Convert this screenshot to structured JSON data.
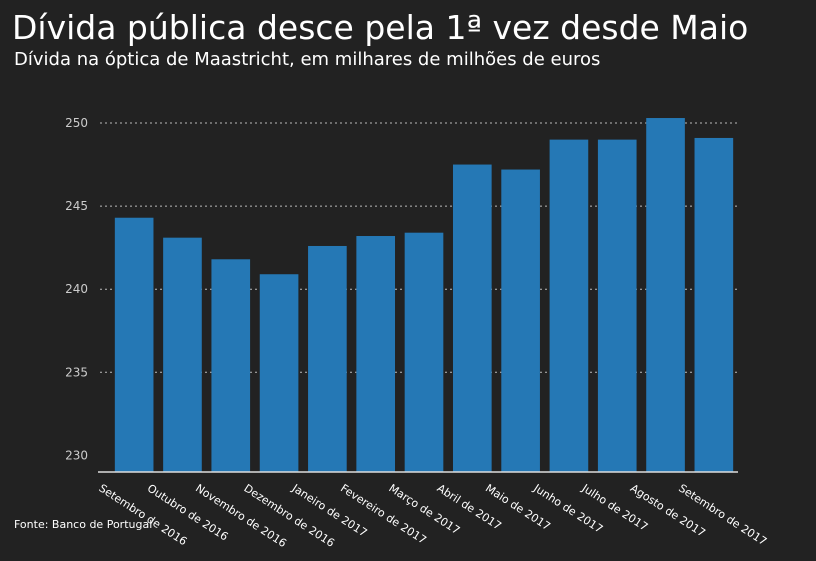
{
  "title": "Dívida pública desce pela 1ª vez desde Maio",
  "subtitle": "Dívida na óptica de Maastricht, em milhares de milhões de euros",
  "source": "Fonte: Banco de Portugal",
  "colors": {
    "background": "#222222",
    "bar": "#2578b5",
    "text": "#ffffff",
    "tick_text": "#cccccc",
    "grid": "#bbbbbb"
  },
  "chart_data": {
    "type": "bar",
    "categories": [
      "Setembro de 2016",
      "Outubro de 2016",
      "Novembro de 2016",
      "Dezembro de 2016",
      "Janeiro de 2017",
      "Fevereiro de 2017",
      "Março de 2017",
      "Abril de 2017",
      "Maio de 2017",
      "Junho de 2017",
      "Julho de 2017",
      "Agosto de 2017",
      "Setembro de 2017"
    ],
    "values": [
      244.3,
      243.1,
      241.8,
      240.9,
      242.6,
      243.2,
      243.4,
      247.5,
      247.2,
      249.0,
      249.0,
      250.3,
      249.1
    ],
    "yticks": [
      230,
      235,
      240,
      245,
      250
    ],
    "ylim": [
      229,
      251.5
    ],
    "grid": true,
    "xlabel": "",
    "ylabel": ""
  }
}
